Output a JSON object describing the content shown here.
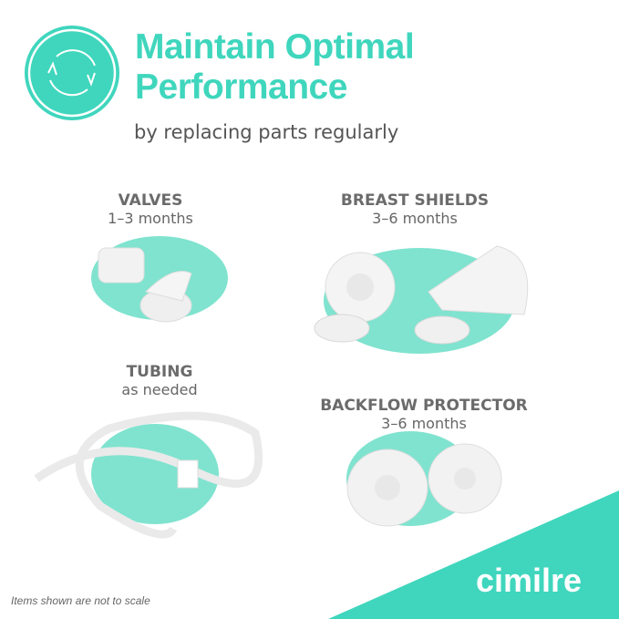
{
  "header": {
    "icon": "refresh-cycle-icon",
    "title_line1": "Maintain Optimal",
    "title_line2": "Performance",
    "subtitle": "by replacing parts regularly"
  },
  "parts": [
    {
      "name": "VALVES",
      "interval": "1–3 months"
    },
    {
      "name": "BREAST SHIELDS",
      "interval": "3–6 months"
    },
    {
      "name": "TUBING",
      "interval": "as needed"
    },
    {
      "name": "BACKFLOW PROTECTOR",
      "interval": "3–6 months"
    }
  ],
  "footer": {
    "note": "Items shown are not to scale",
    "brand": "cimilre"
  },
  "colors": {
    "accent": "#3fd6bd",
    "text": "#666666"
  }
}
